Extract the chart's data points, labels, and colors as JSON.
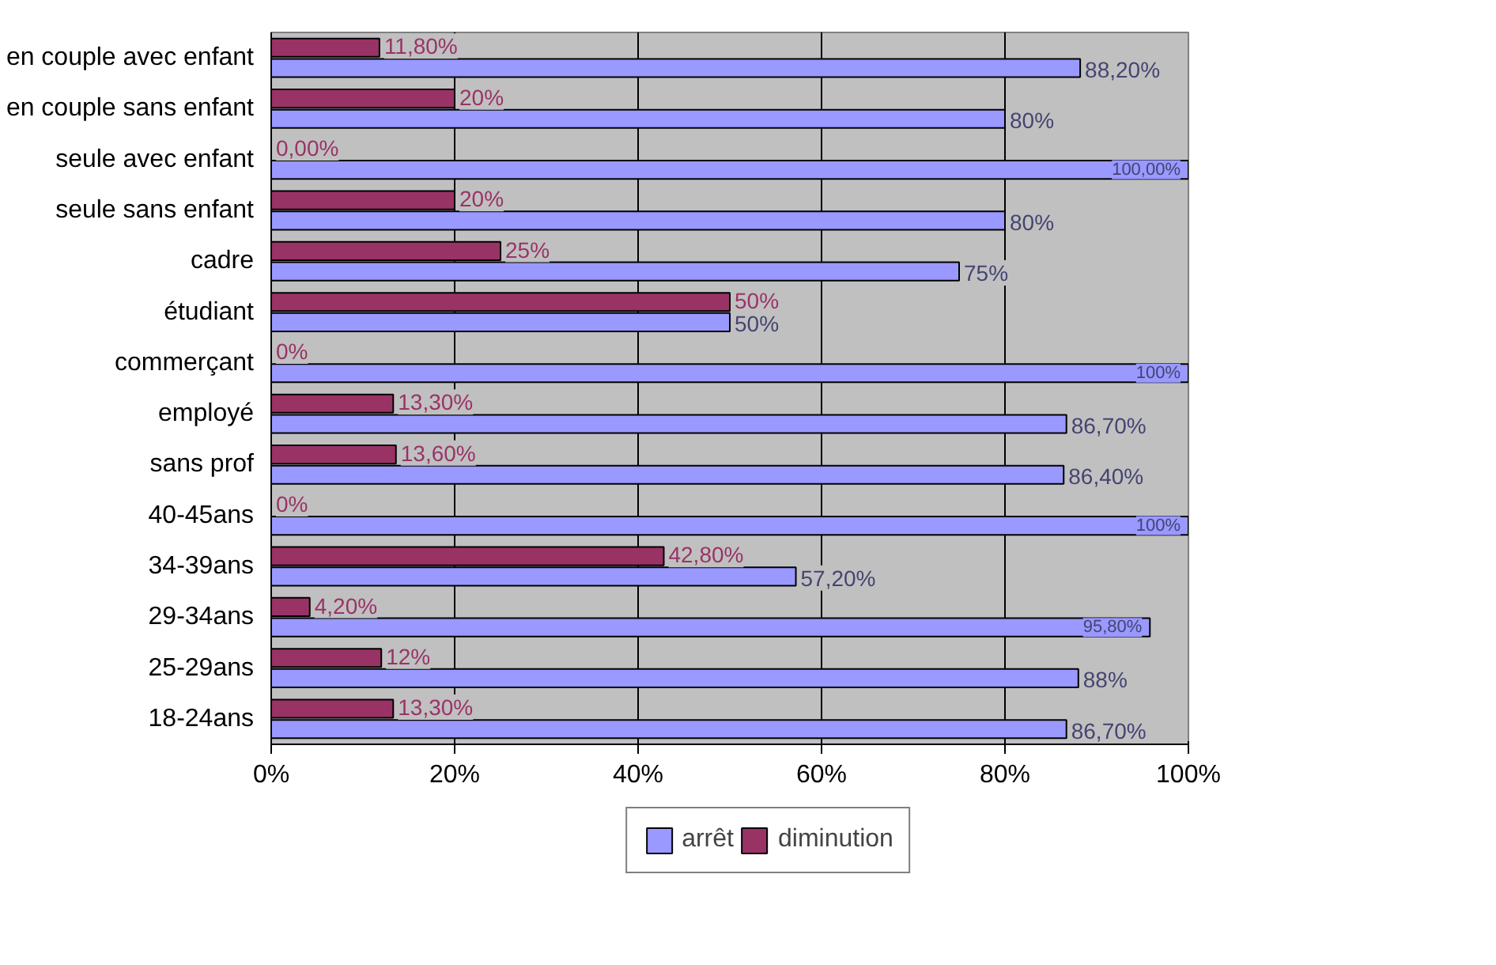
{
  "chart_data": {
    "type": "bar",
    "orientation": "horizontal",
    "categories": [
      "en couple avec enfant",
      "en couple sans enfant",
      "seule avec enfant",
      "seule sans enfant",
      "cadre",
      "étudiant",
      "commerçant",
      "employé",
      "sans prof",
      "40-45ans",
      "34-39ans",
      "29-34ans",
      "25-29ans",
      "18-24ans"
    ],
    "series": [
      {
        "name": "arrêt",
        "color": "#9999ff",
        "values": [
          88.2,
          80,
          100,
          80,
          75,
          50,
          100,
          86.7,
          86.4,
          100,
          57.2,
          95.8,
          88,
          86.7
        ],
        "value_labels": [
          "88,20%",
          "80%",
          "100,00%",
          "80%",
          "75%",
          "50%",
          "100%",
          "86,70%",
          "86,40%",
          "100%",
          "57,20%",
          "95,80%",
          "88%",
          "86,70%"
        ]
      },
      {
        "name": "diminution",
        "color": "#993366",
        "values": [
          11.8,
          20,
          0,
          20,
          25,
          50,
          0,
          13.3,
          13.6,
          0,
          42.8,
          4.2,
          12,
          13.3
        ],
        "value_labels": [
          "11,80%",
          "20%",
          "0,00%",
          "20%",
          "25%",
          "50%",
          "0%",
          "13,30%",
          "13,60%",
          "0%",
          "42,80%",
          "4,20%",
          "12%",
          "13,30%"
        ]
      }
    ],
    "xlim": [
      0,
      100
    ],
    "xticks": [
      {
        "value": 0,
        "label": "0%"
      },
      {
        "value": 20,
        "label": "20%"
      },
      {
        "value": 40,
        "label": "40%"
      },
      {
        "value": 60,
        "label": "60%"
      },
      {
        "value": 80,
        "label": "80%"
      },
      {
        "value": 100,
        "label": "100%"
      }
    ],
    "grid": "x",
    "legend": "bottom"
  }
}
